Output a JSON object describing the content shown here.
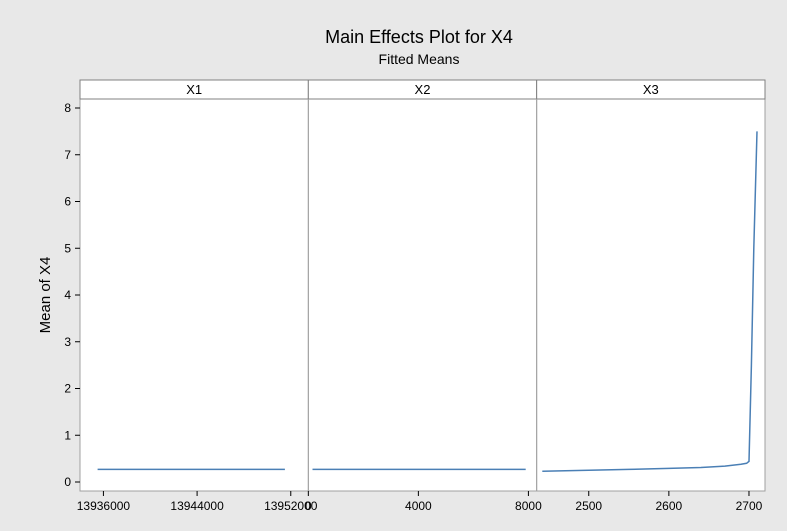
{
  "chart_data": {
    "type": "line",
    "title": "Main Effects Plot for X4",
    "subtitle": "Fitted Means",
    "ylabel": "Mean of X4",
    "ylim": [
      0,
      8
    ],
    "yticks": [
      0,
      1,
      2,
      3,
      4,
      5,
      6,
      7,
      8
    ],
    "line_color": "#4a7fb5",
    "background_color": "#e8e8e8",
    "plot_background_color": "#ffffff",
    "panels": [
      {
        "name": "X1",
        "xlim": [
          13934000,
          13953500
        ],
        "xticks": [
          13936000,
          13944000,
          13952000
        ],
        "xtick_labels": [
          "13936000",
          "13944000",
          "13952000"
        ],
        "x": [
          13935500,
          13951500
        ],
        "y": [
          0.27,
          0.27
        ]
      },
      {
        "name": "X2",
        "xlim": [
          0,
          8300
        ],
        "xticks": [
          0,
          4000,
          8000
        ],
        "xtick_labels": [
          "0",
          "4000",
          "8000"
        ],
        "x": [
          150,
          7900
        ],
        "y": [
          0.27,
          0.27
        ]
      },
      {
        "name": "X3",
        "xlim": [
          2435,
          2720
        ],
        "xticks": [
          2500,
          2600,
          2700
        ],
        "xtick_labels": [
          "2500",
          "2600",
          "2700"
        ],
        "x": [
          2442,
          2500,
          2550,
          2600,
          2640,
          2670,
          2690,
          2697,
          2700,
          2703,
          2706,
          2710
        ],
        "y": [
          0.23,
          0.25,
          0.27,
          0.29,
          0.31,
          0.34,
          0.38,
          0.4,
          0.44,
          2.5,
          5.0,
          7.5
        ]
      }
    ]
  }
}
